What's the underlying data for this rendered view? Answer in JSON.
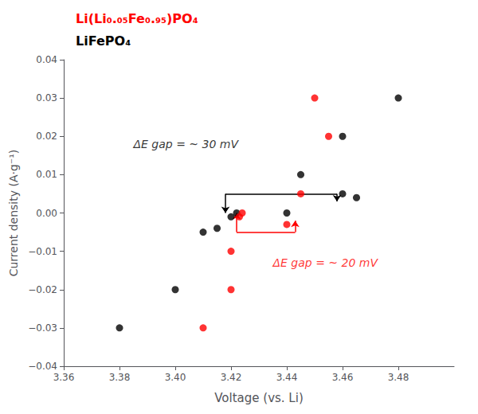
{
  "chart_data": {
    "type": "scatter",
    "x_label": "Voltage (vs. Li)",
    "y_label": "Current density (A·g⁻¹)",
    "series": [
      {
        "name": "LiFePO₄",
        "color": "#000000",
        "values": [
          [
            3.38,
            -0.03
          ],
          [
            3.4,
            -0.02
          ],
          [
            3.41,
            -0.005
          ],
          [
            3.415,
            -0.004
          ],
          [
            3.42,
            -0.001
          ],
          [
            3.422,
            0.0
          ],
          [
            3.44,
            0.0
          ],
          [
            3.445,
            0.01
          ],
          [
            3.46,
            0.005
          ],
          [
            3.46,
            0.02
          ],
          [
            3.465,
            0.004
          ],
          [
            3.48,
            0.03
          ]
        ]
      },
      {
        "name": "Li(Li₀.₀₅Fe₀.₉₅)PO₄",
        "color": "#ff0000",
        "values": [
          [
            3.41,
            -0.03
          ],
          [
            3.42,
            -0.02
          ],
          [
            3.42,
            -0.01
          ],
          [
            3.423,
            -0.001
          ],
          [
            3.424,
            0.0
          ],
          [
            3.44,
            -0.003
          ],
          [
            3.445,
            0.005
          ],
          [
            3.45,
            0.03
          ],
          [
            3.455,
            0.02
          ]
        ]
      }
    ],
    "xlim": [
      3.36,
      3.5
    ],
    "xticks": [
      3.36,
      3.38,
      {
        "value": 3.4,
        "label": "3.40"
      },
      3.42,
      3.44,
      3.46,
      3.48
    ],
    "ylim": [
      -0.04,
      0.04
    ],
    "yticks": [
      {
        "value": -0.04,
        "label": "−0.04"
      },
      {
        "value": -0.03,
        "label": "−0.03"
      },
      {
        "value": -0.02,
        "label": "−0.02"
      },
      {
        "value": -0.01,
        "label": "−0.01"
      },
      {
        "value": 0.0,
        "label": "0.00"
      },
      0.01,
      0.02,
      0.03,
      0.04
    ],
    "brackets": [
      {
        "color": "#000000",
        "x1": 3.418,
        "x2": 3.458,
        "y_start": 0.005,
        "y_end_left": 0.0,
        "y_end_right": 0.003
      },
      {
        "color": "#ff0000",
        "x1": 3.422,
        "x2": 3.443,
        "y_start": -0.005,
        "y_end_left": 0.0,
        "y_end_right": -0.002
      }
    ],
    "annotations": [
      {
        "text": "ΔE gap = ~ 30 mV",
        "x": 3.385,
        "y": 0.018,
        "color": "#000000"
      },
      {
        "text": "ΔE gap = ~ 20 mV",
        "x": 3.435,
        "y": -0.013,
        "color": "#ff0000"
      }
    ],
    "grid": false
  }
}
